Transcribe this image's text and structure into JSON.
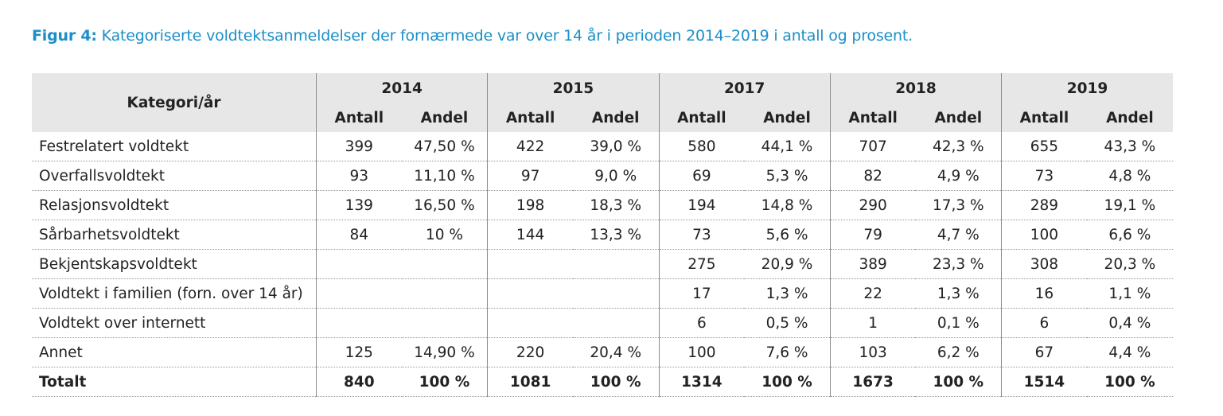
{
  "caption": {
    "lead": "Figur 4:",
    "text": " Kategoriserte voldtektsanmeldelser der fornærmede var over 14 år i perioden 2014–2019 i antall og prosent."
  },
  "table": {
    "corner_label": "Kategori/år",
    "years": [
      "2014",
      "2015",
      "2017",
      "2018",
      "2019"
    ],
    "sub_antall": "Antall",
    "sub_andel": "Andel",
    "rows": [
      {
        "label": "Festrelatert voldtekt",
        "cells": [
          "399",
          "47,50 %",
          "422",
          "39,0 %",
          "580",
          "44,1 %",
          "707",
          "42,3 %",
          "655",
          "43,3 %"
        ]
      },
      {
        "label": "Overfallsvoldtekt",
        "cells": [
          "93",
          "11,10 %",
          "97",
          "9,0 %",
          "69",
          "5,3 %",
          "82",
          "4,9 %",
          "73",
          "4,8 %"
        ]
      },
      {
        "label": "Relasjonsvoldtekt",
        "cells": [
          "139",
          "16,50 %",
          "198",
          "18,3 %",
          "194",
          "14,8 %",
          "290",
          "17,3 %",
          "289",
          "19,1 %"
        ]
      },
      {
        "label": "Sårbarhetsvoldtekt",
        "cells": [
          "84",
          "10 %",
          "144",
          "13,3 %",
          "73",
          "5,6 %",
          "79",
          "4,7 %",
          "100",
          "6,6 %"
        ]
      },
      {
        "label": "Bekjentskapsvoldtekt",
        "cells": [
          "",
          "",
          "",
          "",
          "275",
          "20,9 %",
          "389",
          "23,3 %",
          "308",
          "20,3 %"
        ]
      },
      {
        "label": "Voldtekt i familien (forn. over 14 år)",
        "cells": [
          "",
          "",
          "",
          "",
          "17",
          "1,3 %",
          "22",
          "1,3 %",
          "16",
          "1,1 %"
        ]
      },
      {
        "label": "Voldtekt over internett",
        "cells": [
          "",
          "",
          "",
          "",
          "6",
          "0,5 %",
          "1",
          "0,1 %",
          "6",
          "0,4 %"
        ]
      },
      {
        "label": "Annet",
        "cells": [
          "125",
          "14,90 %",
          "220",
          "20,4 %",
          "100",
          "7,6 %",
          "103",
          "6,2 %",
          "67",
          "4,4 %"
        ]
      },
      {
        "label": "Totalt",
        "cells": [
          "840",
          "100 %",
          "1081",
          "100 %",
          "1314",
          "100 %",
          "1673",
          "100 %",
          "1514",
          "100 %"
        ]
      }
    ]
  }
}
